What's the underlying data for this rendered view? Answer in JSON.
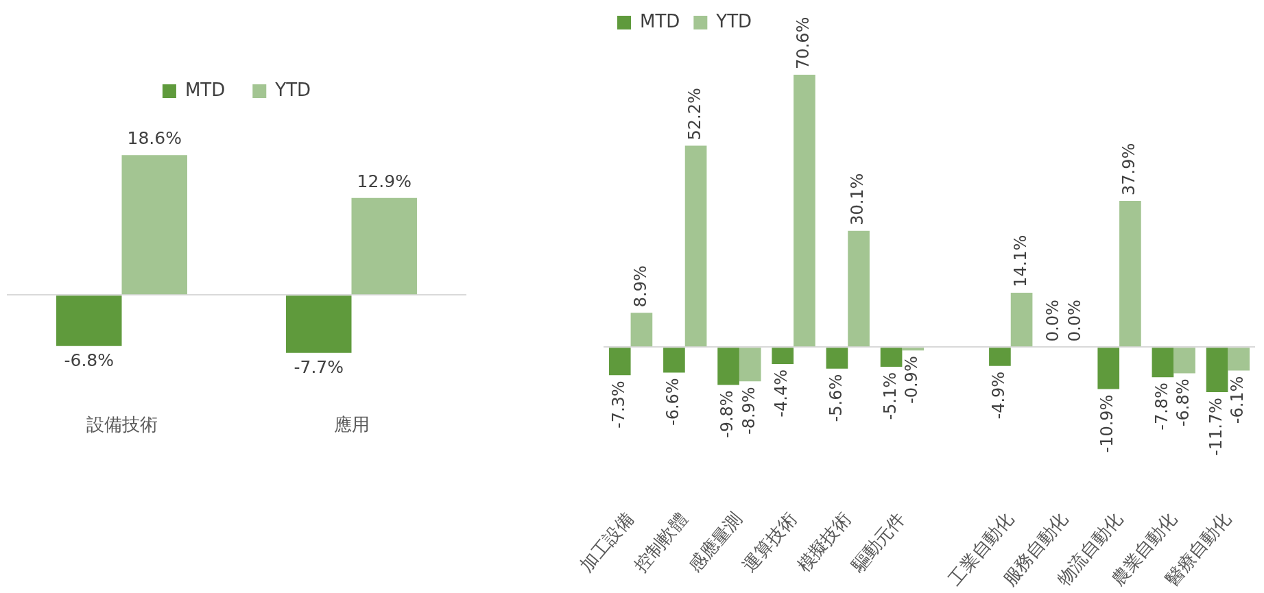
{
  "chart_data": [
    {
      "type": "bar",
      "categories": [
        "設備技術",
        "應用"
      ],
      "legend": "top",
      "series": [
        {
          "name": "MTD",
          "color": "#5f9a3c",
          "values": [
            -6.8,
            -7.7
          ],
          "value_labels": [
            "-6.8%",
            "-7.7%"
          ]
        },
        {
          "name": "YTD",
          "color": "#a3c592",
          "values": [
            18.6,
            12.9
          ],
          "value_labels": [
            "18.6%",
            "12.9%"
          ]
        }
      ]
    },
    {
      "type": "bar",
      "categories": [
        "加工設備",
        "控制軟體",
        "感應量測",
        "運算技術",
        "模擬技術",
        "驅動元件",
        null,
        "工業自動化",
        "服務自動化",
        "物流自動化",
        "農業自動化",
        "醫療自動化"
      ],
      "legend": "top",
      "series": [
        {
          "name": "MTD",
          "color": "#5f9a3c",
          "values": [
            -7.3,
            -6.6,
            -9.8,
            -4.4,
            -5.6,
            -5.1,
            null,
            -4.9,
            0.0,
            -10.9,
            -7.8,
            -11.7
          ],
          "value_labels": [
            "-7.3%",
            "-6.6%",
            "-9.8%",
            "-4.4%",
            "-5.6%",
            "-5.1%",
            null,
            "-4.9%",
            "0.0%",
            "-10.9%",
            "-7.8%",
            "-11.7%"
          ]
        },
        {
          "name": "YTD",
          "color": "#a3c592",
          "values": [
            8.9,
            52.2,
            -8.9,
            70.6,
            30.1,
            -0.9,
            null,
            14.1,
            0.0,
            37.9,
            -6.8,
            -6.1
          ],
          "value_labels": [
            "8.9%",
            "52.2%",
            "-8.9%",
            "70.6%",
            "30.1%",
            "-0.9%",
            null,
            "14.1%",
            "0.0%",
            "37.9%",
            "-6.8%",
            "-6.1%"
          ]
        }
      ]
    }
  ]
}
